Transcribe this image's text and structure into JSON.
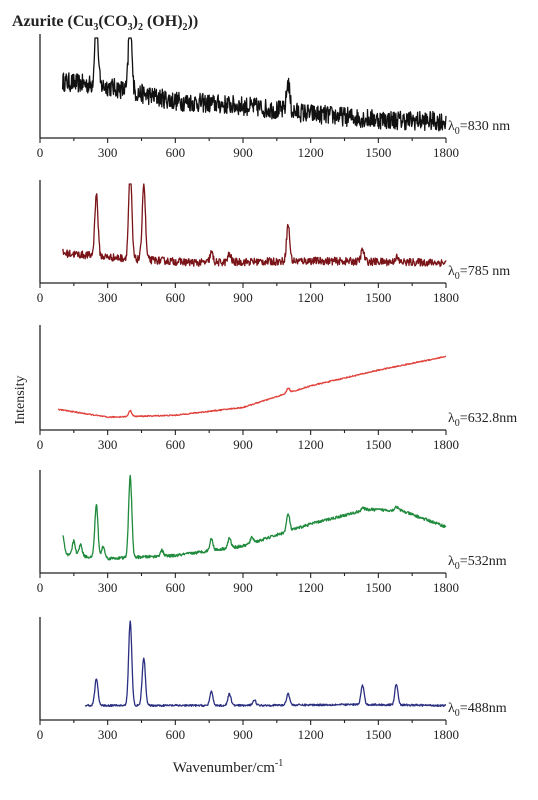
{
  "figure": {
    "title": "Azurite (Cu3(CO3)2 (OH)2))",
    "title_parts": {
      "a": "Azurite (Cu",
      "b": "3",
      "c": "(CO",
      "d": "3",
      "e": ")",
      "f": "2",
      "g": " (OH)",
      "h": "2",
      "i": "))"
    },
    "ylabel": "Intensity",
    "xlabel": "Wavenumber/cm-1",
    "xlabel_parts": {
      "base": "Wavenumber/cm",
      "sup": "-1"
    }
  },
  "chart_data": [
    {
      "type": "line",
      "series_label": "λ0=830 nm",
      "label_parts": {
        "lambda": "λ",
        "sub": "0",
        "rest": "=830 nm"
      },
      "color": "#111111",
      "xlim": [
        0,
        1800
      ],
      "xticks": [
        "0",
        "300",
        "600",
        "900",
        "1200",
        "1500",
        "1800"
      ],
      "x_range": [
        100,
        1800
      ],
      "baseline": [
        [
          100,
          0.55
        ],
        [
          300,
          0.5
        ],
        [
          600,
          0.35
        ],
        [
          900,
          0.3
        ],
        [
          1200,
          0.22
        ],
        [
          1500,
          0.16
        ],
        [
          1800,
          0.14
        ]
      ],
      "peaks": [
        [
          250,
          0.78
        ],
        [
          400,
          0.9
        ],
        [
          1100,
          0.3
        ]
      ],
      "noise": 0.1,
      "y_range": [
        0,
        1
      ]
    },
    {
      "type": "line",
      "series_label": "λ0=785 nm",
      "label_parts": {
        "lambda": "λ",
        "sub": "0",
        "rest": "=785 nm"
      },
      "color": "#7a1418",
      "xlim": [
        0,
        1800
      ],
      "xticks": [
        "0",
        "300",
        "600",
        "900",
        "1200",
        "1500",
        "1800"
      ],
      "x_range": [
        100,
        1800
      ],
      "baseline": [
        [
          100,
          0.28
        ],
        [
          400,
          0.22
        ],
        [
          700,
          0.18
        ],
        [
          1200,
          0.2
        ],
        [
          1800,
          0.18
        ]
      ],
      "peaks": [
        [
          250,
          0.65
        ],
        [
          400,
          0.95
        ],
        [
          460,
          0.8
        ],
        [
          760,
          0.1
        ],
        [
          840,
          0.08
        ],
        [
          1100,
          0.38
        ],
        [
          1430,
          0.12
        ],
        [
          1580,
          0.05
        ]
      ],
      "noise": 0.04,
      "y_range": [
        0,
        1
      ]
    },
    {
      "type": "line",
      "series_label": "λ0=632.8nm",
      "label_parts": {
        "lambda": "λ",
        "sub": "0",
        "rest": "=632.8nm"
      },
      "color": "#e0423c",
      "xlim": [
        0,
        1800
      ],
      "xticks": [
        "0",
        "300",
        "600",
        "900",
        "1200",
        "1500",
        "1800"
      ],
      "x_range": [
        80,
        1800
      ],
      "baseline": [
        [
          80,
          0.18
        ],
        [
          300,
          0.1
        ],
        [
          600,
          0.12
        ],
        [
          900,
          0.2
        ],
        [
          1200,
          0.42
        ],
        [
          1500,
          0.58
        ],
        [
          1800,
          0.72
        ]
      ],
      "peaks": [
        [
          400,
          0.06
        ],
        [
          1100,
          0.05
        ]
      ],
      "noise": 0.006,
      "y_range": [
        0,
        1
      ]
    },
    {
      "type": "line",
      "series_label": "λ0=532nm",
      "label_parts": {
        "lambda": "λ",
        "sub": "0",
        "rest": "=532nm"
      },
      "color": "#1f8a3c",
      "xlim": [
        0,
        1800
      ],
      "xticks": [
        "0",
        "300",
        "600",
        "900",
        "1200",
        "1500",
        "1800"
      ],
      "x_range": [
        100,
        1800
      ],
      "baseline": [
        [
          100,
          0.16
        ],
        [
          300,
          0.12
        ],
        [
          600,
          0.15
        ],
        [
          900,
          0.25
        ],
        [
          1200,
          0.48
        ],
        [
          1450,
          0.63
        ],
        [
          1600,
          0.62
        ],
        [
          1800,
          0.45
        ]
      ],
      "peaks": [
        [
          100,
          0.2
        ],
        [
          150,
          0.15
        ],
        [
          180,
          0.12
        ],
        [
          250,
          0.55
        ],
        [
          280,
          0.12
        ],
        [
          400,
          0.85
        ],
        [
          540,
          0.06
        ],
        [
          760,
          0.12
        ],
        [
          840,
          0.1
        ],
        [
          940,
          0.06
        ],
        [
          1100,
          0.18
        ],
        [
          1430,
          0.03
        ],
        [
          1580,
          0.04
        ]
      ],
      "noise": 0.015,
      "y_range": [
        0,
        1
      ]
    },
    {
      "type": "line",
      "series_label": "λ0=488nm",
      "label_parts": {
        "lambda": "λ",
        "sub": "0",
        "rest": "=488nm"
      },
      "color": "#2b2f80",
      "xlim": [
        0,
        1800
      ],
      "xticks": [
        "0",
        "300",
        "600",
        "900",
        "1200",
        "1500",
        "1800"
      ],
      "x_range": [
        200,
        1800
      ],
      "baseline": [
        [
          200,
          0.12
        ],
        [
          400,
          0.12
        ],
        [
          900,
          0.12
        ],
        [
          1400,
          0.13
        ],
        [
          1800,
          0.12
        ]
      ],
      "peaks": [
        [
          250,
          0.28
        ],
        [
          400,
          0.88
        ],
        [
          460,
          0.5
        ],
        [
          760,
          0.14
        ],
        [
          840,
          0.12
        ],
        [
          950,
          0.06
        ],
        [
          1100,
          0.12
        ],
        [
          1430,
          0.2
        ],
        [
          1580,
          0.22
        ]
      ],
      "noise": 0.01,
      "y_range": [
        0,
        1
      ]
    }
  ]
}
